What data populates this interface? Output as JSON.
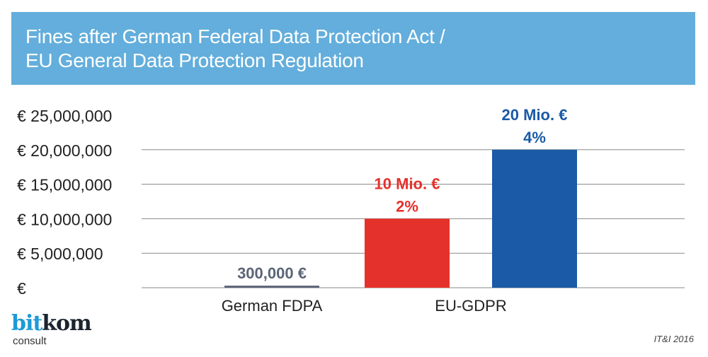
{
  "chart_data": {
    "type": "bar",
    "title": "Fines after German Federal Data Protection Act / EU General Data Protection Regulation",
    "title_lines": [
      "Fines after German Federal Data Protection Act /",
      "EU General Data Protection Regulation"
    ],
    "categories": [
      "German FDPA",
      "EU-GDPR"
    ],
    "bars": [
      {
        "category": "German FDPA",
        "value": 300000,
        "labels": [
          "300,000 €"
        ],
        "color": "#5b6577"
      },
      {
        "category": "EU-GDPR",
        "value": 10000000,
        "labels": [
          "10 Mio. €",
          "2%"
        ],
        "color": "#e5312b"
      },
      {
        "category": "EU-GDPR",
        "value": 20000000,
        "labels": [
          "20 Mio. €",
          "4%"
        ],
        "color": "#1b5aa6"
      }
    ],
    "yticks": [
      0,
      5000000,
      10000000,
      15000000,
      20000000,
      25000000
    ],
    "ytick_labels": [
      "€",
      "€   5,000,000",
      "€ 10,000,000",
      "€ 15,000,000",
      "€ 20,000,000",
      "€ 25,000,000"
    ],
    "ylim": [
      0,
      25000000
    ],
    "xlabel": "",
    "ylabel": "",
    "grid": true
  },
  "logo": {
    "main_a": "bit",
    "main_b": "kom",
    "sub": "consult"
  },
  "source": "IT&I 2016"
}
